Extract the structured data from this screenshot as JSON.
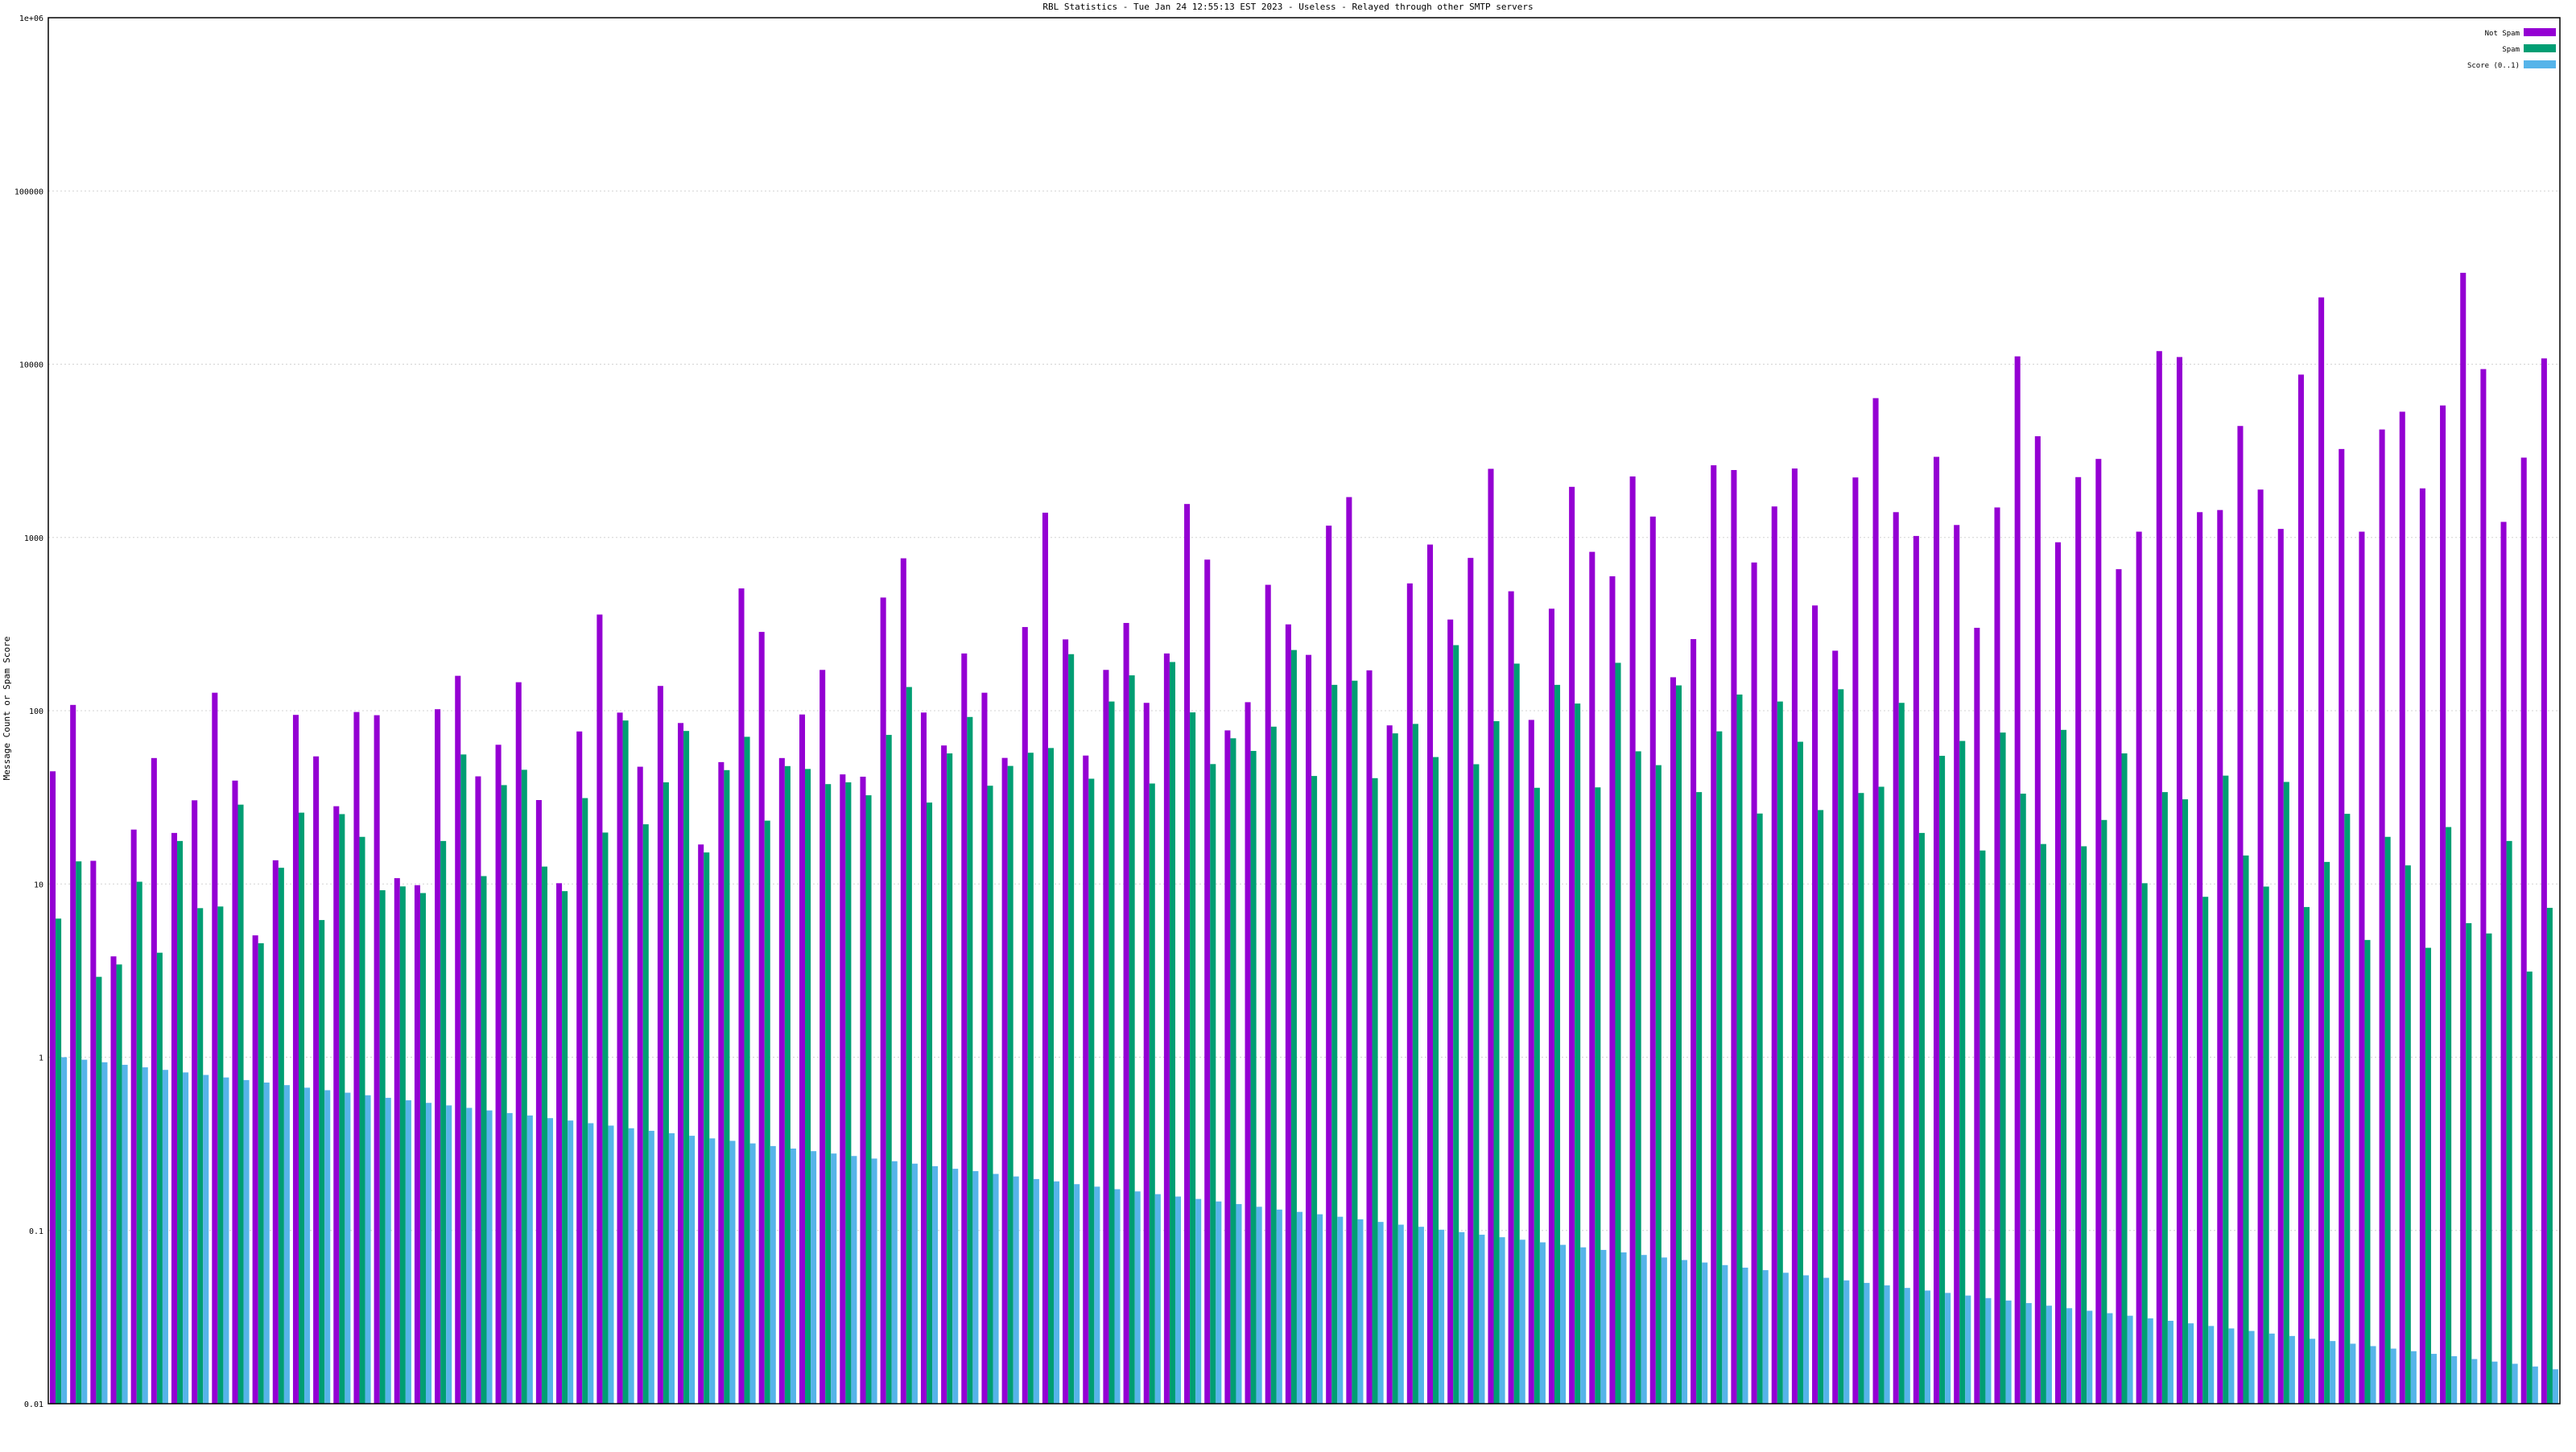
{
  "chart_data": {
    "type": "bar",
    "title": "RBL Statistics - Tue Jan 24 12:55:13 EST 2023 - Useless - Relayed through other SMTP servers",
    "ylabel": "Message Count or Spam Score",
    "xlabel": "",
    "y_scale": "log",
    "ylim": [
      0.01,
      1000000
    ],
    "y_tick_labels": [
      "0.01",
      "0.1",
      "1",
      "10",
      "100",
      "1000",
      "10000",
      "100000",
      "1e+06"
    ],
    "grid": true,
    "legend_position": "top-right",
    "categories": [],
    "series": [
      {
        "name": "Not Spam",
        "color": "#9400d3",
        "values": []
      },
      {
        "name": "Spam",
        "color": "#009e73",
        "values": []
      },
      {
        "name": "Score (0..1)",
        "color": "#56b4e9",
        "values": []
      }
    ]
  }
}
